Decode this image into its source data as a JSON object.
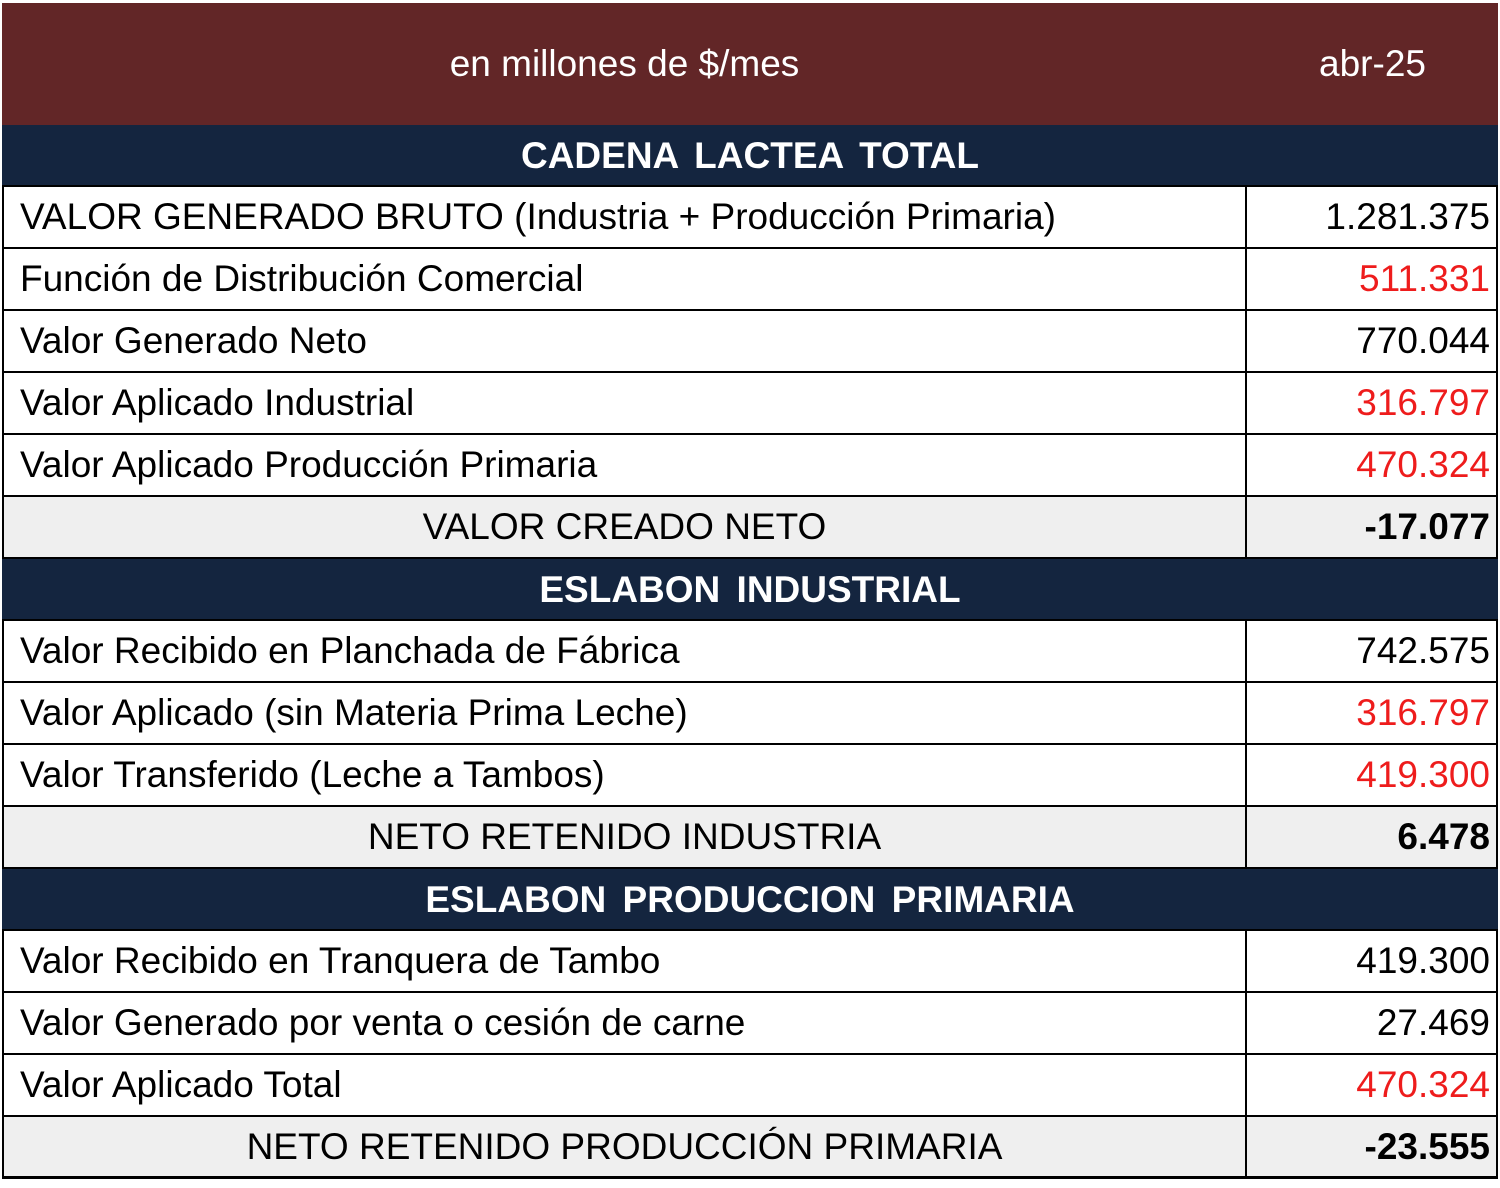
{
  "chart_data": {
    "type": "table",
    "header": {
      "unit_caption": "en millones de $/mes",
      "period": "abr-25"
    },
    "colors": {
      "header_bg": "#622627",
      "section_bg": "#14253f",
      "negative_text": "#ee1c1c",
      "total_bg": "#efefef"
    },
    "sections": [
      {
        "title": "CADENA  LACTEA  TOTAL",
        "rows": [
          {
            "label": "VALOR GENERADO BRUTO (Industria + Producción Primaria)",
            "value": "1.281.375",
            "red": false
          },
          {
            "label": "Función de Distribución Comercial",
            "value": "511.331",
            "red": true
          },
          {
            "label": "Valor Generado Neto",
            "value": "770.044",
            "red": false
          },
          {
            "label": "Valor Aplicado Industrial",
            "value": "316.797",
            "red": true
          },
          {
            "label": "Valor Aplicado Producción Primaria",
            "value": "470.324",
            "red": true
          }
        ],
        "total": {
          "label": "VALOR CREADO NETO",
          "value": "-17.077"
        }
      },
      {
        "title": "ESLABON  INDUSTRIAL",
        "rows": [
          {
            "label": "Valor Recibido en Planchada de Fábrica",
            "value": "742.575",
            "red": false
          },
          {
            "label": "Valor Aplicado (sin Materia Prima Leche)",
            "value": "316.797",
            "red": true
          },
          {
            "label": "Valor Transferido (Leche a Tambos)",
            "value": "419.300",
            "red": true
          }
        ],
        "total": {
          "label": "NETO RETENIDO INDUSTRIA",
          "value": "6.478"
        }
      },
      {
        "title": "ESLABON  PRODUCCION  PRIMARIA",
        "rows": [
          {
            "label": "Valor Recibido en Tranquera de Tambo",
            "value": "419.300",
            "red": false
          },
          {
            "label": "Valor Generado por venta o cesión de carne",
            "value": "27.469",
            "red": false
          },
          {
            "label": "Valor Aplicado  Total",
            "value": "470.324",
            "red": true
          }
        ],
        "total": {
          "label": "NETO RETENIDO PRODUCCIÓN PRIMARIA",
          "value": "-23.555"
        }
      }
    ]
  }
}
